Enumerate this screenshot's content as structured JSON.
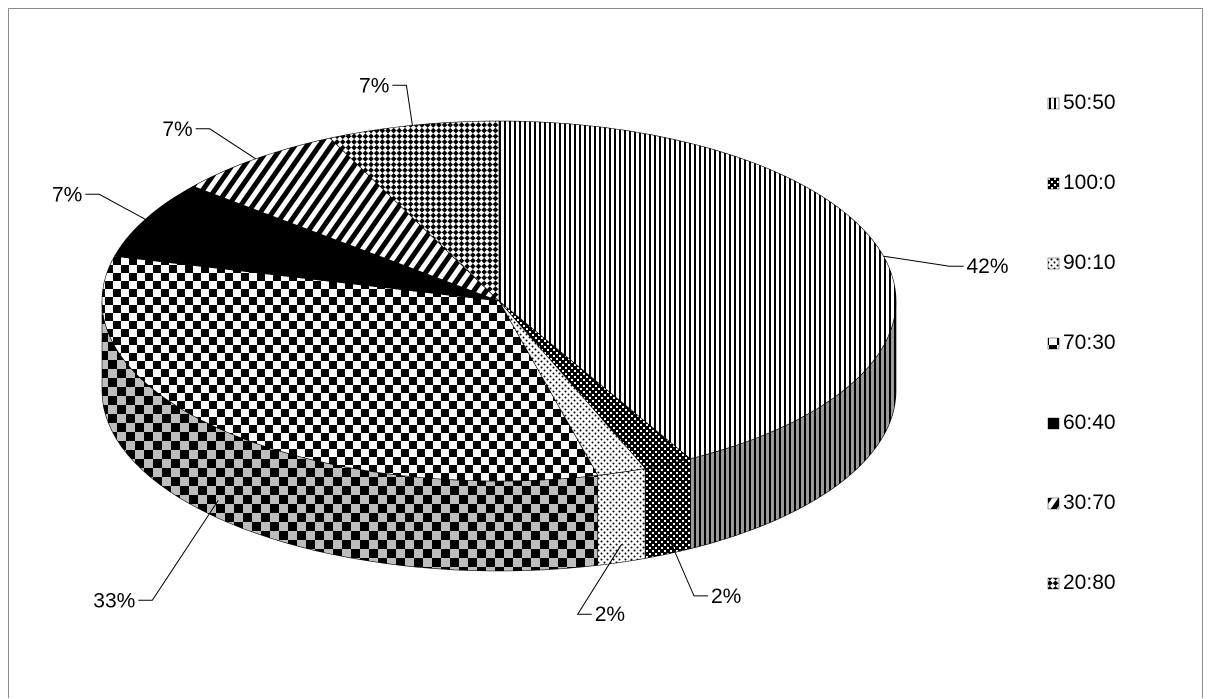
{
  "chart_data": {
    "type": "pie",
    "style": "3d",
    "title": "",
    "legend_position": "right",
    "categories": [
      "50:50",
      "100:0",
      "90:10",
      "70:30",
      "60:40",
      "30:70",
      "20:80"
    ],
    "values": [
      42,
      2,
      2,
      33,
      7,
      7,
      7
    ],
    "data_labels": [
      "42%",
      "2%",
      "2%",
      "33%",
      "7%",
      "7%",
      "7%"
    ],
    "legend": {
      "items": [
        {
          "label": "50:50",
          "pattern": "vertical-lines"
        },
        {
          "label": "100:0",
          "pattern": "small-grid"
        },
        {
          "label": "90:10",
          "pattern": "dots"
        },
        {
          "label": "70:30",
          "pattern": "checker"
        },
        {
          "label": "60:40",
          "pattern": "solid-black"
        },
        {
          "label": "30:70",
          "pattern": "diagonal-stripes"
        },
        {
          "label": "20:80",
          "pattern": "diamond-checker"
        }
      ]
    },
    "colors": {
      "ink": "#000000",
      "paper": "#ffffff",
      "frame": "#8c8c8c"
    }
  }
}
